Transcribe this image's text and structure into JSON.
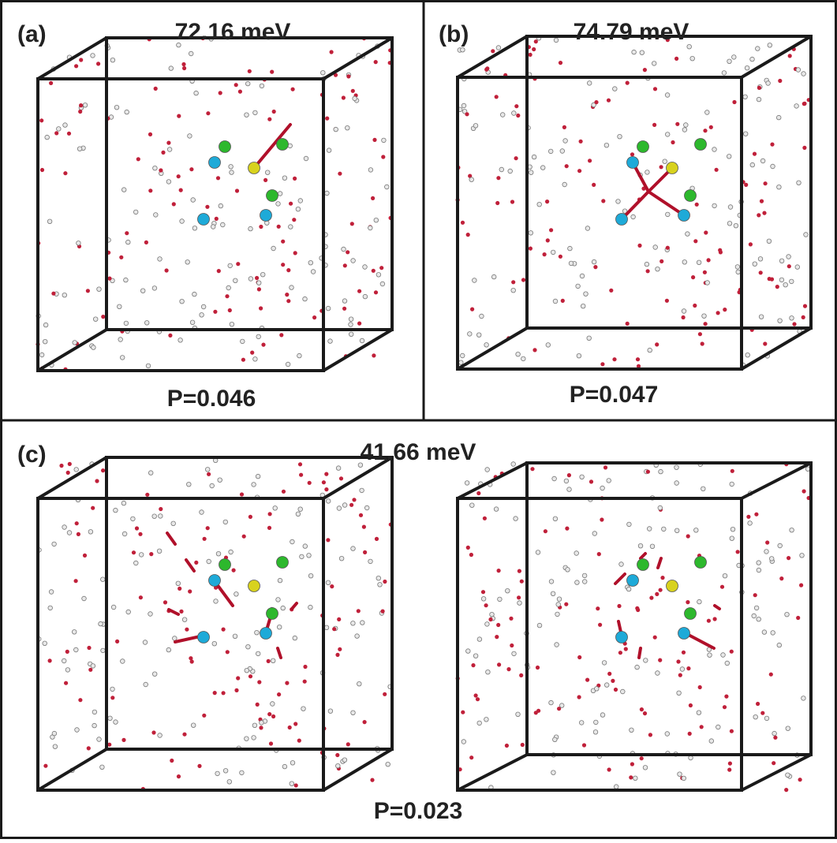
{
  "panels": [
    {
      "label": "(a)",
      "energy": "72.16 meV",
      "probability": "P=0.046"
    },
    {
      "label": "(b)",
      "energy": "74.79 meV",
      "probability": "P=0.047"
    },
    {
      "label": "(c)",
      "energy": "41.66 meV",
      "probability": "P=0.023"
    }
  ]
}
